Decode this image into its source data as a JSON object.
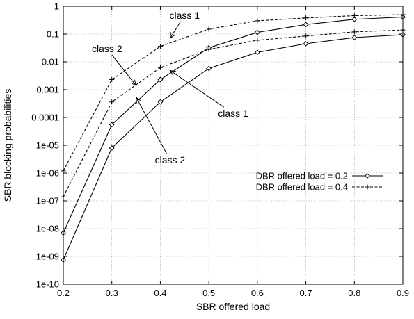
{
  "chart_data": {
    "type": "line",
    "title": "",
    "xlabel": "SBR offered load",
    "ylabel": "SBR blocking probabilities",
    "xlim": [
      0.2,
      0.9
    ],
    "ylim": [
      1e-10,
      1
    ],
    "yscale": "log",
    "grid": true,
    "legend_position": "right",
    "x_ticks": [
      {
        "value": 0.2,
        "label": "0.2"
      },
      {
        "value": 0.3,
        "label": "0.3"
      },
      {
        "value": 0.4,
        "label": "0.4"
      },
      {
        "value": 0.5,
        "label": "0.5"
      },
      {
        "value": 0.6,
        "label": "0.6"
      },
      {
        "value": 0.7,
        "label": "0.7"
      },
      {
        "value": 0.8,
        "label": "0.8"
      },
      {
        "value": 0.9,
        "label": "0.9"
      }
    ],
    "y_ticks": [
      {
        "value": 1,
        "label": "1"
      },
      {
        "value": 0.1,
        "label": "0.1"
      },
      {
        "value": 0.01,
        "label": "0.01"
      },
      {
        "value": 0.001,
        "label": "0.001"
      },
      {
        "value": 0.0001,
        "label": "0.0001"
      },
      {
        "value": 1e-05,
        "label": "1e-05"
      },
      {
        "value": 1e-06,
        "label": "1e-06"
      },
      {
        "value": 1e-07,
        "label": "1e-07"
      },
      {
        "value": 1e-08,
        "label": "1e-08"
      },
      {
        "value": 1e-09,
        "label": "1e-09"
      },
      {
        "value": 1e-10,
        "label": "1e-10"
      }
    ],
    "legend": [
      {
        "label": "DBR offered load = 0.2",
        "style": "solid",
        "marker": "diamond"
      },
      {
        "label": "DBR offered load = 0.4",
        "style": "dashed",
        "marker": "plus"
      }
    ],
    "series": [
      {
        "legend_index": 0,
        "style": "solid",
        "marker": "diamond",
        "x": [
          0.2,
          0.3,
          0.4,
          0.5,
          0.6,
          0.7,
          0.8,
          0.9
        ],
        "y": [
          7e-09,
          5.5e-05,
          0.0023,
          0.032,
          0.115,
          0.22,
          0.34,
          0.41
        ]
      },
      {
        "legend_index": 0,
        "style": "solid",
        "marker": "diamond",
        "x": [
          0.2,
          0.3,
          0.4,
          0.5,
          0.6,
          0.7,
          0.8,
          0.9
        ],
        "y": [
          7.5e-10,
          8e-06,
          0.00036,
          0.0058,
          0.022,
          0.045,
          0.075,
          0.095
        ]
      },
      {
        "legend_index": 1,
        "style": "dashed",
        "marker": "plus",
        "x": [
          0.2,
          0.3,
          0.4,
          0.5,
          0.6,
          0.7,
          0.8,
          0.9
        ],
        "y": [
          1.2e-06,
          0.0023,
          0.036,
          0.15,
          0.3,
          0.38,
          0.46,
          0.5
        ]
      },
      {
        "legend_index": 1,
        "style": "dashed",
        "marker": "plus",
        "x": [
          0.2,
          0.3,
          0.4,
          0.5,
          0.6,
          0.7,
          0.8,
          0.9
        ],
        "y": [
          1.4e-07,
          0.00036,
          0.0062,
          0.028,
          0.06,
          0.085,
          0.12,
          0.14
        ]
      }
    ],
    "annotations": [
      {
        "text": "class 1",
        "label_at": [
          0.45,
          0.48
        ],
        "points_to": [
          0.42,
          0.07
        ]
      },
      {
        "text": "class 2",
        "label_at": [
          0.29,
          0.03
        ],
        "points_to": [
          0.35,
          0.0014
        ]
      },
      {
        "text": "class 1",
        "label_at": [
          0.55,
          0.00014
        ],
        "points_to": [
          0.42,
          0.0049
        ]
      },
      {
        "text": "class 2",
        "label_at": [
          0.42,
          3e-06
        ],
        "points_to": [
          0.35,
          0.00053
        ]
      }
    ]
  }
}
